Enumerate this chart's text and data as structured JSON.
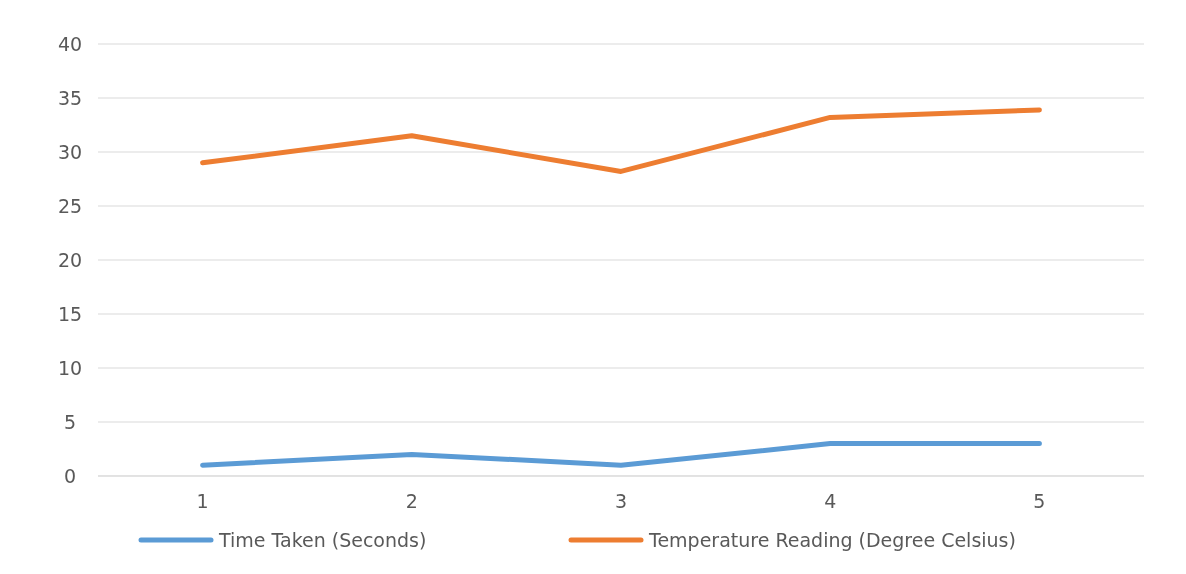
{
  "chart_data": {
    "type": "line",
    "categories": [
      "1",
      "2",
      "3",
      "4",
      "5"
    ],
    "series": [
      {
        "name": "Time Taken (Seconds)",
        "color": "#5b9bd5",
        "values": [
          1,
          2,
          1,
          3,
          3
        ]
      },
      {
        "name": "Temperature Reading (Degree Celsius)",
        "color": "#ed7d31",
        "values": [
          29,
          31.5,
          28.2,
          33.2,
          33.9
        ]
      }
    ],
    "ylim": [
      0,
      40
    ],
    "yticks": [
      0,
      5,
      10,
      15,
      20,
      25,
      30,
      35,
      40
    ],
    "grid": "y",
    "legend": "bottom",
    "marker": "none",
    "line_style": "solid"
  }
}
